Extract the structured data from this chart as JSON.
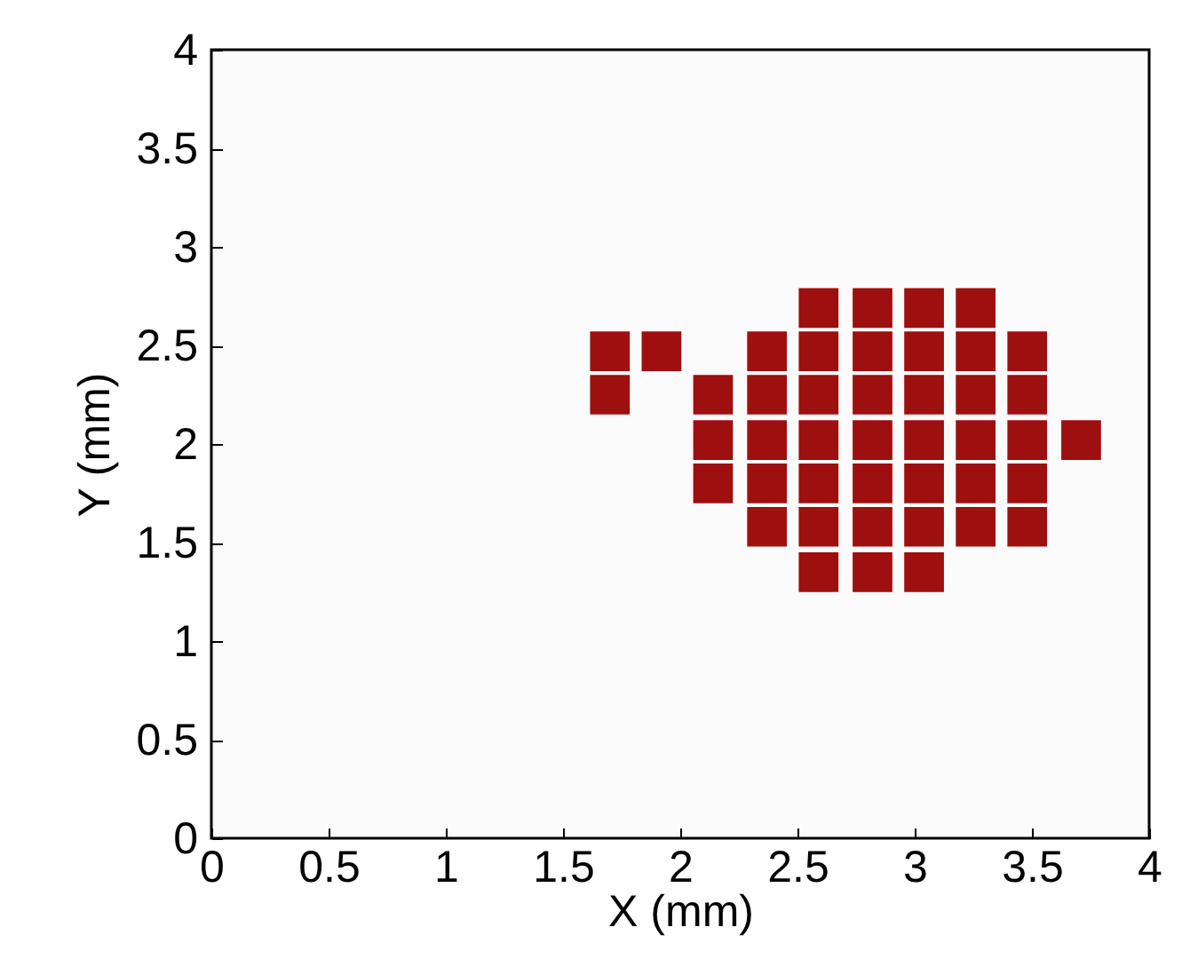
{
  "chart_data": {
    "type": "scatter",
    "xlabel": "X (mm)",
    "ylabel": "Y (mm)",
    "marker": "square",
    "grid": false,
    "xlim": [
      0,
      4
    ],
    "xticks": [
      0,
      0.5,
      1,
      1.5,
      2,
      2.5,
      3,
      3.5,
      4
    ],
    "ylim": [
      0,
      4
    ],
    "yticks": [
      0,
      0.5,
      1,
      1.5,
      2,
      2.5,
      3,
      3.5,
      4
    ],
    "series": [
      {
        "color": "#9e0f0f",
        "x": [
          2.59,
          2.82,
          3.04,
          3.26,
          1.7,
          1.92,
          2.37,
          2.59,
          2.82,
          3.04,
          3.26,
          3.48,
          1.7,
          2.14,
          2.37,
          2.59,
          2.82,
          3.04,
          3.26,
          3.48,
          2.14,
          2.37,
          2.59,
          2.82,
          3.04,
          3.26,
          3.48,
          3.71,
          2.14,
          2.37,
          2.59,
          2.82,
          3.04,
          3.26,
          3.48,
          2.37,
          2.59,
          2.82,
          3.04,
          3.26,
          3.48,
          2.59,
          2.82,
          3.04
        ],
        "values": [
          2.69,
          2.69,
          2.69,
          2.69,
          2.47,
          2.47,
          2.47,
          2.47,
          2.47,
          2.47,
          2.47,
          2.47,
          2.25,
          2.25,
          2.25,
          2.25,
          2.25,
          2.25,
          2.25,
          2.25,
          2.02,
          2.02,
          2.02,
          2.02,
          2.02,
          2.02,
          2.02,
          2.02,
          1.8,
          1.8,
          1.8,
          1.8,
          1.8,
          1.8,
          1.8,
          1.58,
          1.58,
          1.58,
          1.58,
          1.58,
          1.58,
          1.35,
          1.35,
          1.35
        ]
      }
    ]
  }
}
